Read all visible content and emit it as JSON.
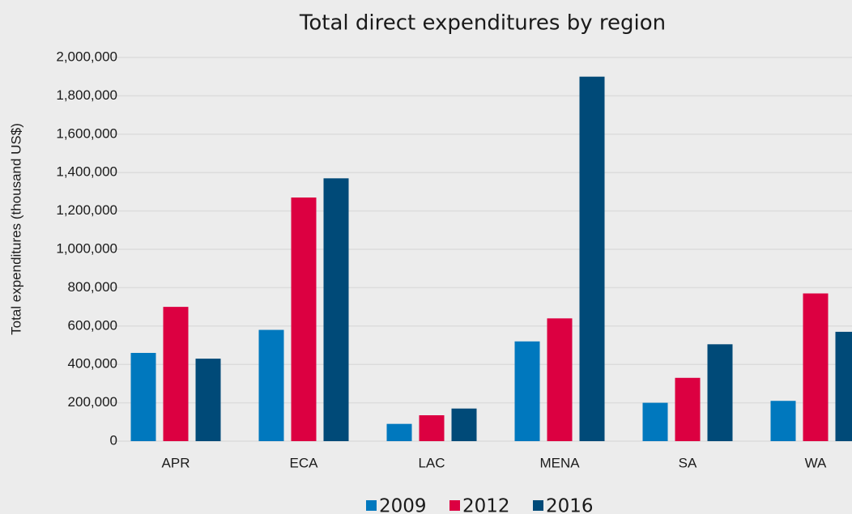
{
  "chart_data": {
    "type": "bar",
    "title": "Total direct expenditures by region",
    "y_label": "Total expenditures (thousand US$)",
    "categories": [
      "APR",
      "ECA",
      "LAC",
      "MENA",
      "SA",
      "WA"
    ],
    "series": [
      {
        "name": "2009",
        "color": "#0078be",
        "values": [
          460000,
          580000,
          90000,
          520000,
          200000,
          210000
        ]
      },
      {
        "name": "2012",
        "color": "#dc0041",
        "values": [
          700000,
          1270000,
          135000,
          640000,
          330000,
          770000
        ]
      },
      {
        "name": "2016",
        "color": "#004a78",
        "values": [
          430000,
          1370000,
          170000,
          1900000,
          505000,
          570000
        ]
      }
    ],
    "ylim": [
      0,
      2000000
    ],
    "yticks": [
      0,
      {
        "value": 200000,
        "label": "200,000"
      },
      {
        "value": 400000,
        "label": "400,000"
      },
      {
        "value": 600000,
        "label": "600,000"
      },
      {
        "value": 800000,
        "label": "800,000"
      },
      {
        "value": 1000000,
        "label": "1,000,000"
      },
      {
        "value": 1200000,
        "label": "1,200,000"
      },
      {
        "value": 1400000,
        "label": "1,400,000"
      },
      {
        "value": 1600000,
        "label": "1,600,000"
      },
      {
        "value": 1800000,
        "label": "1,800,000"
      },
      {
        "value": 2000000,
        "label": "2,000,000"
      }
    ],
    "grid": true,
    "legend": "bottom"
  }
}
